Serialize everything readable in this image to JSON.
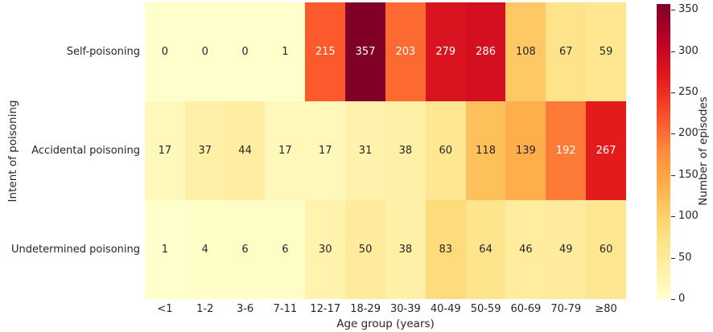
{
  "chart_data": {
    "type": "heatmap",
    "title": "",
    "xlabel": "Age group (years)",
    "ylabel": "Intent of poisoning",
    "categories": [
      "<1",
      "1-2",
      "3-6",
      "7-11",
      "12-17",
      "18-29",
      "30-39",
      "40-49",
      "50-59",
      "60-69",
      "70-79",
      "≥80"
    ],
    "series": [
      {
        "name": "Self-poisoning",
        "values": [
          0,
          0,
          0,
          1,
          215,
          357,
          203,
          279,
          286,
          108,
          67,
          59
        ]
      },
      {
        "name": "Accidental poisoning",
        "values": [
          17,
          37,
          44,
          17,
          17,
          31,
          38,
          60,
          118,
          139,
          192,
          267
        ]
      },
      {
        "name": "Undetermined poisoning",
        "values": [
          1,
          4,
          6,
          6,
          30,
          50,
          38,
          83,
          64,
          46,
          49,
          60
        ]
      }
    ],
    "annotations_shown": true,
    "grid": false,
    "legend_position": "none",
    "colorbar": {
      "label": "Number of episodes",
      "ticks": [
        0,
        50,
        100,
        150,
        200,
        250,
        300,
        350
      ],
      "vmin": 0,
      "vmax": 357
    },
    "colormap": {
      "name": "YlOrRd",
      "stops": [
        "#ffffcc",
        "#ffeda0",
        "#fed976",
        "#feb24c",
        "#fd8d3c",
        "#fc4e2a",
        "#e31a1c",
        "#bd0026",
        "#800026"
      ]
    },
    "text_colors": {
      "dark_text": "#262626",
      "light_text": "#ffffff"
    }
  }
}
